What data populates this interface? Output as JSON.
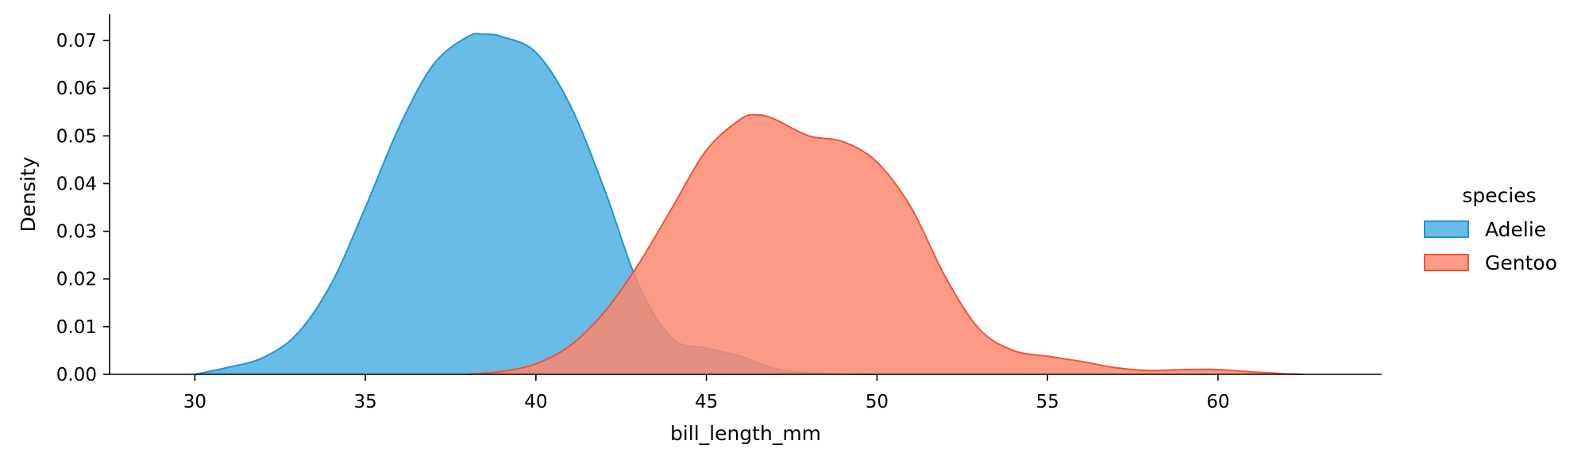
{
  "chart_data": {
    "type": "area",
    "xlabel": "bill_length_mm",
    "ylabel": "Density",
    "xlim": [
      27.5,
      64.8
    ],
    "ylim": [
      0,
      0.0755
    ],
    "xticks": [
      30,
      35,
      40,
      45,
      50,
      55,
      60
    ],
    "yticks": [
      0.0,
      0.01,
      0.02,
      0.03,
      0.04,
      0.05,
      0.06,
      0.07
    ],
    "grid": false,
    "legend": {
      "title": "species",
      "placement": "right"
    },
    "series": [
      {
        "name": "Adelie",
        "color": "#1f95d6",
        "fill": "#4eb0e0",
        "x": [
          30.0,
          31.0,
          32.0,
          33.0,
          34.0,
          35.0,
          36.0,
          37.0,
          38.0,
          38.5,
          39.0,
          40.0,
          41.0,
          42.0,
          43.0,
          44.0,
          45.0,
          46.0,
          47.0,
          48.0,
          49.0,
          50.0
        ],
        "y": [
          0.0,
          0.0015,
          0.0035,
          0.0085,
          0.019,
          0.035,
          0.052,
          0.065,
          0.0708,
          0.0713,
          0.0708,
          0.0675,
          0.0565,
          0.039,
          0.019,
          0.0075,
          0.0055,
          0.0038,
          0.0012,
          0.0003,
          0.0001,
          0.0
        ]
      },
      {
        "name": "Gentoo",
        "color": "#f0533a",
        "fill": "#fa8870",
        "x": [
          38.0,
          39.0,
          40.0,
          41.0,
          42.0,
          43.0,
          44.0,
          45.0,
          46.0,
          46.5,
          47.0,
          48.0,
          49.0,
          50.0,
          51.0,
          52.0,
          53.0,
          54.0,
          55.0,
          56.0,
          57.0,
          58.0,
          59.0,
          60.0,
          61.0,
          62.0,
          62.5
        ],
        "y": [
          0.0,
          0.0006,
          0.0022,
          0.006,
          0.013,
          0.023,
          0.035,
          0.047,
          0.0535,
          0.0544,
          0.0535,
          0.05,
          0.0488,
          0.0445,
          0.035,
          0.0205,
          0.0095,
          0.005,
          0.0038,
          0.0027,
          0.0014,
          0.0008,
          0.001,
          0.001,
          0.0005,
          0.0001,
          0.0
        ]
      }
    ]
  }
}
